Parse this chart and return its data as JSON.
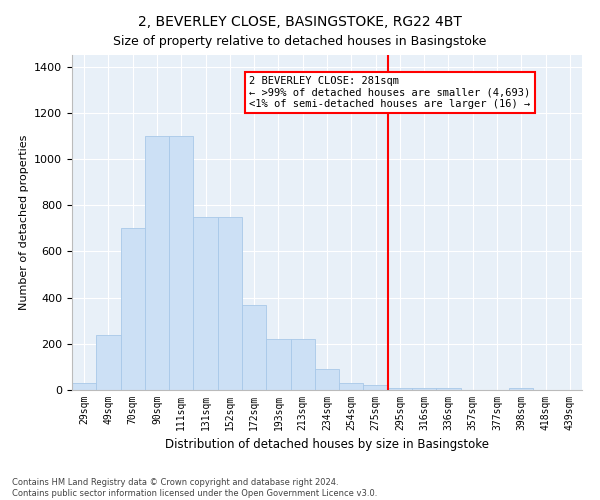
{
  "title": "2, BEVERLEY CLOSE, BASINGSTOKE, RG22 4BT",
  "subtitle": "Size of property relative to detached houses in Basingstoke",
  "xlabel": "Distribution of detached houses by size in Basingstoke",
  "ylabel": "Number of detached properties",
  "categories": [
    "29sqm",
    "49sqm",
    "70sqm",
    "90sqm",
    "111sqm",
    "131sqm",
    "152sqm",
    "172sqm",
    "193sqm",
    "213sqm",
    "234sqm",
    "254sqm",
    "275sqm",
    "295sqm",
    "316sqm",
    "336sqm",
    "357sqm",
    "377sqm",
    "398sqm",
    "418sqm",
    "439sqm"
  ],
  "values": [
    30,
    240,
    700,
    1100,
    1100,
    750,
    750,
    370,
    220,
    220,
    90,
    30,
    20,
    10,
    10,
    10,
    0,
    0,
    10,
    0,
    0
  ],
  "bar_color": "#cce0f5",
  "bar_edge_color": "#a8c8e8",
  "vline_color": "red",
  "vline_pos": 12.5,
  "annotation_title": "2 BEVERLEY CLOSE: 281sqm",
  "annotation_line1": "← >99% of detached houses are smaller (4,693)",
  "annotation_line2": "<1% of semi-detached houses are larger (16) →",
  "ylim": [
    0,
    1450
  ],
  "footer1": "Contains HM Land Registry data © Crown copyright and database right 2024.",
  "footer2": "Contains public sector information licensed under the Open Government Licence v3.0.",
  "bg_color": "#e8f0f8",
  "title_fontsize": 10,
  "subtitle_fontsize": 9,
  "ylabel_fontsize": 8,
  "xlabel_fontsize": 8.5,
  "tick_fontsize": 7,
  "annotation_fontsize": 7.5,
  "footer_fontsize": 6
}
